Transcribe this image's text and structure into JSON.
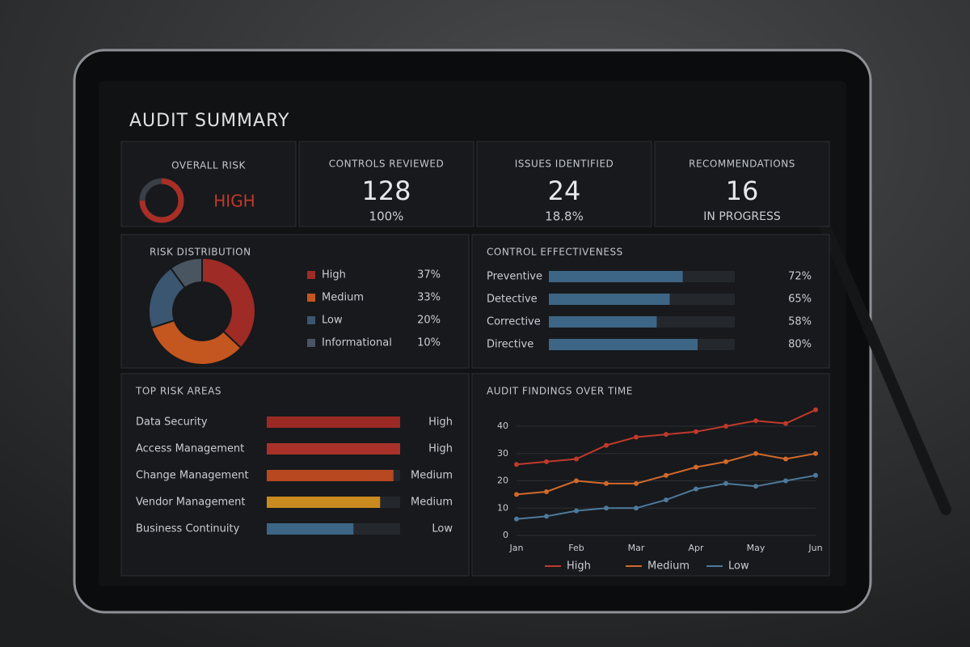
{
  "title": "AUDIT SUMMARY",
  "kpis": [
    {
      "label": "OVERALL RISK",
      "value": "HIGH"
    },
    {
      "label": "CONTROLS REVIEWED",
      "value": 128,
      "detail": "100%"
    },
    {
      "label": "ISSUES IDENTIFIED",
      "value": 24,
      "detail": "18.8%"
    },
    {
      "label": "RECOMMENDATIONS",
      "value": 16,
      "detail": "IN PROGRESS"
    }
  ],
  "chart_data": [
    {
      "type": "pie",
      "title": "RISK DISTRIBUTION",
      "categories": [
        "High",
        "Medium",
        "Low",
        "Informational"
      ],
      "values": [
        37,
        33,
        20,
        10
      ],
      "value_labels": [
        "37%",
        "33%",
        "20%",
        "10%"
      ],
      "colors": [
        "#9e2b25",
        "#c4561f",
        "#3b5670",
        "#4a5562"
      ]
    },
    {
      "type": "bar",
      "title": "CONTROL EFFECTIVENESS",
      "categories": [
        "Preventive",
        "Detective",
        "Corrective",
        "Directive"
      ],
      "values": [
        72,
        65,
        58,
        80
      ],
      "value_labels": [
        "72%",
        "65%",
        "58%",
        "80%"
      ],
      "xlim": [
        0,
        100
      ],
      "color": "#3d6585"
    },
    {
      "type": "bar",
      "title": "TOP RISK AREAS",
      "categories": [
        "Data Security",
        "Access Management",
        "Change Management",
        "Vendor Management",
        "Business Continuity"
      ],
      "values": [
        100,
        100,
        95,
        85,
        65
      ],
      "ratings": [
        "High",
        "High",
        "Medium",
        "Medium",
        "Low"
      ],
      "xlim": [
        0,
        100
      ],
      "colors": [
        "#9c2a24",
        "#a8322a",
        "#b8481f",
        "#c98a1f",
        "#3d6585"
      ]
    },
    {
      "type": "line",
      "title": "AUDIT FINDINGS OVER TIME",
      "categories": [
        "Jan",
        null,
        "Feb",
        null,
        "Mar",
        null,
        "Apr",
        null,
        "May",
        null,
        "Jun"
      ],
      "ylim": [
        0,
        48
      ],
      "yticks": [
        0,
        10,
        20,
        30,
        40
      ],
      "grid": true,
      "series": [
        {
          "name": "High",
          "color": "#c0392b",
          "values": [
            26,
            27,
            28,
            33,
            36,
            37,
            38,
            40,
            42,
            41,
            46
          ]
        },
        {
          "name": "Medium",
          "color": "#d2692b",
          "values": [
            15,
            16,
            20,
            19,
            19,
            22,
            25,
            27,
            30,
            28,
            30
          ]
        },
        {
          "name": "Low",
          "color": "#4d7a9c",
          "values": [
            6,
            7,
            9,
            10,
            10,
            13,
            17,
            19,
            18,
            20,
            22
          ]
        }
      ]
    }
  ]
}
